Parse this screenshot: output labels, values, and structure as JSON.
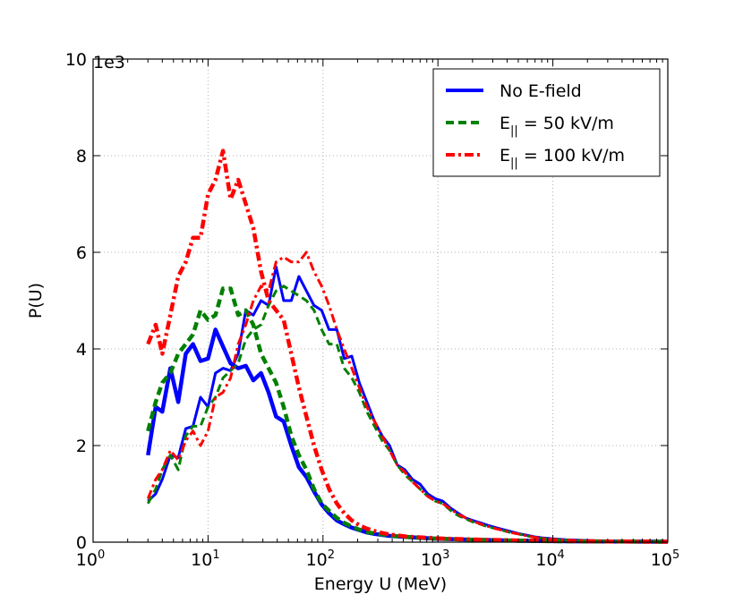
{
  "chart_data": {
    "type": "line",
    "xlabel": "Energy U (MeV)",
    "ylabel": "P(U)",
    "y_multiplier": "1e3",
    "x_scale": "log",
    "xlim": [
      1,
      100000
    ],
    "ylim": [
      0,
      10000
    ],
    "grid": true,
    "legend_position": "top-right",
    "x_ticks": [
      {
        "base": "10",
        "exp": "0",
        "value": 1
      },
      {
        "base": "10",
        "exp": "1",
        "value": 10
      },
      {
        "base": "10",
        "exp": "2",
        "value": 100
      },
      {
        "base": "10",
        "exp": "3",
        "value": 1000
      },
      {
        "base": "10",
        "exp": "4",
        "value": 10000
      },
      {
        "base": "10",
        "exp": "5",
        "value": 100000
      }
    ],
    "y_ticks": [
      {
        "label": "0",
        "value": 0
      },
      {
        "label": "2",
        "value": 2000
      },
      {
        "label": "4",
        "value": 4000
      },
      {
        "label": "6",
        "value": 6000
      },
      {
        "label": "8",
        "value": 8000
      },
      {
        "label": "10",
        "value": 10000
      }
    ],
    "legend": [
      {
        "prefix": "No E-field",
        "sub": "",
        "suffix": "",
        "color": "#0000ff",
        "style": "solid"
      },
      {
        "prefix": "E",
        "sub": "||",
        "suffix": " = 50 kV/m",
        "color": "#008000",
        "style": "dashed"
      },
      {
        "prefix": "E",
        "sub": "||",
        "suffix": " = 100 kV/m",
        "color": "#ff0000",
        "style": "dashdot"
      }
    ],
    "series": [
      {
        "color": "#0000ff",
        "style": "solid",
        "width": 4.5,
        "x": [
          3,
          3.5,
          4,
          4.7,
          5.5,
          6.4,
          7.4,
          8.6,
          10,
          11.6,
          13.5,
          15.7,
          18.3,
          21.3,
          24.8,
          28.9,
          33.6,
          39.1,
          45.5,
          53,
          61.7,
          71.8,
          83.6,
          97.3,
          113,
          132,
          153,
          178,
          207,
          241,
          281,
          327,
          380,
          442,
          515,
          600,
          700,
          1000,
          2000,
          5000,
          10000,
          30000,
          100000
        ],
        "y": [
          1800,
          2800,
          2700,
          3600,
          2900,
          3900,
          4100,
          3750,
          3800,
          4400,
          4050,
          3700,
          3600,
          3650,
          3350,
          3500,
          3100,
          2600,
          2500,
          2000,
          1550,
          1350,
          1050,
          780,
          600,
          450,
          370,
          300,
          250,
          200,
          170,
          150,
          130,
          120,
          110,
          100,
          90,
          70,
          50,
          30,
          20,
          15,
          10
        ]
      },
      {
        "color": "#0000ff",
        "style": "solid",
        "width": 3,
        "x": [
          3,
          3.5,
          4,
          4.7,
          5.5,
          6.4,
          7.4,
          8.6,
          10,
          11.6,
          13.5,
          15.7,
          18.3,
          21.3,
          24.8,
          28.9,
          33.6,
          39.1,
          45.5,
          53,
          61.7,
          71.8,
          83.6,
          97.3,
          113,
          132,
          153,
          178,
          207,
          241,
          281,
          327,
          380,
          442,
          515,
          600,
          700,
          815,
          950,
          1100,
          1300,
          1500,
          1750,
          2000,
          2350,
          2700,
          3200,
          3700,
          4300,
          5000,
          6000,
          7000,
          8000,
          10000,
          13000,
          17000,
          22000,
          30000,
          50000,
          100000
        ],
        "y": [
          850,
          1000,
          1300,
          1800,
          1750,
          2350,
          2400,
          3000,
          2800,
          3500,
          3600,
          3550,
          3900,
          4800,
          4700,
          5000,
          4900,
          5700,
          5000,
          5000,
          5500,
          5200,
          4900,
          4800,
          4400,
          4400,
          3800,
          3850,
          3300,
          2900,
          2500,
          2200,
          2000,
          1600,
          1500,
          1300,
          1200,
          1000,
          900,
          850,
          700,
          600,
          500,
          450,
          400,
          350,
          300,
          260,
          220,
          180,
          140,
          110,
          90,
          70,
          50,
          40,
          30,
          20,
          15,
          10
        ]
      },
      {
        "color": "#008000",
        "style": "dashed",
        "width": 4.5,
        "x": [
          3,
          3.5,
          4,
          4.7,
          5.5,
          6.4,
          7.4,
          8.6,
          10,
          11.6,
          13.5,
          15.7,
          18.3,
          21.3,
          24.8,
          28.9,
          33.6,
          39.1,
          45.5,
          53,
          61.7,
          71.8,
          83.6,
          97.3,
          113,
          132,
          153,
          178,
          207,
          241,
          281,
          327,
          380,
          442,
          515,
          600,
          700,
          1000,
          2000,
          5000,
          10000,
          30000,
          100000
        ],
        "y": [
          2300,
          2900,
          3300,
          3500,
          3900,
          4100,
          4300,
          4800,
          4600,
          4700,
          5250,
          5250,
          4700,
          4800,
          4500,
          3900,
          3600,
          3300,
          2800,
          2200,
          1800,
          1500,
          1100,
          800,
          650,
          500,
          400,
          320,
          260,
          210,
          180,
          160,
          140,
          120,
          110,
          100,
          90,
          70,
          50,
          30,
          20,
          15,
          10
        ]
      },
      {
        "color": "#008000",
        "style": "dashed",
        "width": 3,
        "x": [
          3,
          3.5,
          4,
          4.7,
          5.5,
          6.4,
          7.4,
          8.6,
          10,
          11.6,
          13.5,
          15.7,
          18.3,
          21.3,
          24.8,
          28.9,
          33.6,
          39.1,
          45.5,
          53,
          61.7,
          71.8,
          83.6,
          97.3,
          113,
          132,
          153,
          178,
          207,
          241,
          281,
          327,
          380,
          442,
          515,
          600,
          700,
          815,
          950,
          1100,
          1300,
          1500,
          1750,
          2000,
          2350,
          2700,
          3200,
          3700,
          4300,
          5000,
          6000,
          7000,
          8000,
          10000,
          13000,
          17000,
          22000,
          30000,
          50000,
          100000
        ],
        "y": [
          800,
          1100,
          1500,
          1800,
          1500,
          2200,
          2400,
          2400,
          2800,
          3000,
          3400,
          3550,
          3700,
          4200,
          4400,
          4500,
          4900,
          5200,
          5300,
          5200,
          5100,
          5000,
          4800,
          4400,
          4100,
          4100,
          3600,
          3400,
          3100,
          2700,
          2400,
          2100,
          1900,
          1600,
          1400,
          1250,
          1100,
          950,
          850,
          800,
          650,
          550,
          480,
          420,
          370,
          320,
          280,
          240,
          200,
          170,
          130,
          100,
          80,
          60,
          45,
          35,
          25,
          20,
          15,
          10
        ]
      },
      {
        "color": "#ff0000",
        "style": "dashdot",
        "width": 4.5,
        "x": [
          3,
          3.5,
          4,
          4.7,
          5.5,
          6.4,
          7.4,
          8.6,
          10,
          11.6,
          13.5,
          15.7,
          18.3,
          21.3,
          24.8,
          28.9,
          33.6,
          39.1,
          45.5,
          53,
          61.7,
          71.8,
          83.6,
          97.3,
          113,
          132,
          153,
          178,
          207,
          241,
          281,
          327,
          380,
          442,
          515,
          600,
          700,
          1000,
          2000,
          5000,
          10000,
          30000,
          100000
        ],
        "y": [
          4100,
          4500,
          3900,
          4700,
          5500,
          5800,
          6300,
          6300,
          7200,
          7500,
          8100,
          7100,
          7500,
          7000,
          6500,
          5600,
          5000,
          4800,
          4600,
          3900,
          3200,
          2600,
          2000,
          1500,
          1100,
          800,
          600,
          450,
          350,
          280,
          230,
          190,
          160,
          140,
          120,
          110,
          100,
          80,
          55,
          35,
          25,
          15,
          10
        ]
      },
      {
        "color": "#ff0000",
        "style": "dashdot",
        "width": 3,
        "x": [
          3,
          3.5,
          4,
          4.7,
          5.5,
          6.4,
          7.4,
          8.6,
          10,
          11.6,
          13.5,
          15.7,
          18.3,
          21.3,
          24.8,
          28.9,
          33.6,
          39.1,
          45.5,
          53,
          61.7,
          71.8,
          83.6,
          97.3,
          113,
          132,
          153,
          178,
          207,
          241,
          281,
          327,
          380,
          442,
          515,
          600,
          700,
          815,
          950,
          1100,
          1300,
          1500,
          1750,
          2000,
          2350,
          2700,
          3200,
          3700,
          4300,
          5000,
          6000,
          7000,
          8000,
          10000,
          13000,
          17000,
          22000,
          30000,
          50000,
          100000
        ],
        "y": [
          900,
          1300,
          1500,
          1900,
          1700,
          2100,
          2300,
          2000,
          2300,
          3000,
          3100,
          3400,
          4100,
          4500,
          5000,
          5300,
          5200,
          5800,
          5900,
          5800,
          5800,
          6000,
          5600,
          5300,
          4900,
          4400,
          4000,
          3600,
          3200,
          2800,
          2500,
          2200,
          1900,
          1600,
          1450,
          1250,
          1100,
          950,
          850,
          800,
          680,
          580,
          500,
          430,
          380,
          330,
          280,
          240,
          200,
          170,
          130,
          100,
          80,
          60,
          45,
          35,
          25,
          20,
          15,
          10
        ]
      }
    ]
  }
}
